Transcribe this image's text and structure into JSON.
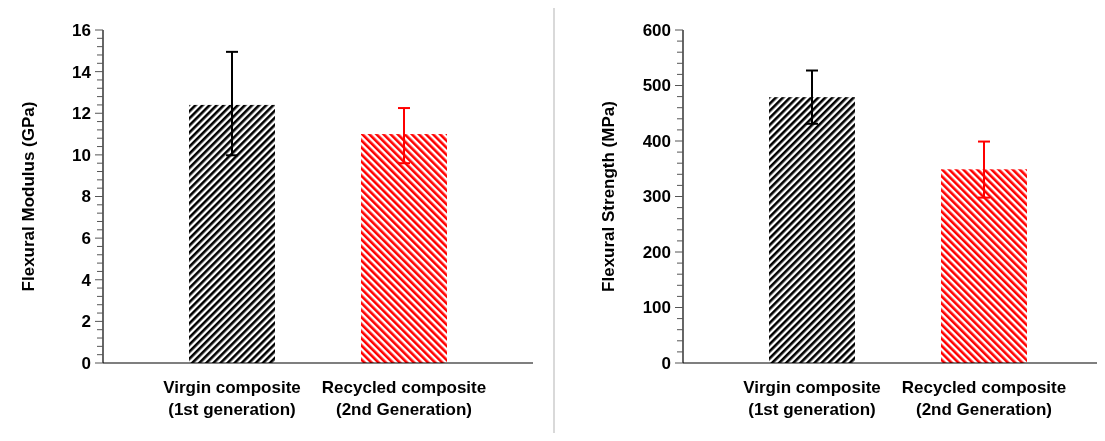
{
  "chart_data": [
    {
      "type": "bar",
      "ylabel": "Flexural Modulus (GPa)",
      "categories": [
        "Virgin composite\n(1st generation)",
        "Recycled composite\n(2nd Generation)"
      ],
      "values": [
        12.4,
        11.0
      ],
      "colors": [
        "#000000",
        "#ff0000"
      ],
      "errors": [
        [
          9.98,
          14.95
        ],
        [
          9.6,
          12.25
        ]
      ],
      "ylim": [
        0,
        16
      ],
      "yticks": [
        0,
        {
          "value": 0.4,
          "label": null
        },
        {
          "value": 0.8,
          "label": null
        },
        {
          "value": 1.2,
          "label": null
        },
        {
          "value": 1.6,
          "label": null
        },
        2,
        {
          "value": 2.4,
          "label": null
        },
        {
          "value": 2.8,
          "label": null
        },
        {
          "value": 3.2,
          "label": null
        },
        {
          "value": 3.6,
          "label": null
        },
        4,
        {
          "value": 4.4,
          "label": null
        },
        {
          "value": 4.8,
          "label": null
        },
        {
          "value": 5.2,
          "label": null
        },
        {
          "value": 5.6,
          "label": null
        },
        6,
        {
          "value": 6.4,
          "label": null
        },
        {
          "value": 6.8,
          "label": null
        },
        {
          "value": 7.2,
          "label": null
        },
        {
          "value": 7.6,
          "label": null
        },
        8,
        {
          "value": 8.4,
          "label": null
        },
        {
          "value": 8.8,
          "label": null
        },
        {
          "value": 9.2,
          "label": null
        },
        {
          "value": 9.6,
          "label": null
        },
        10,
        {
          "value": 10.4,
          "label": null
        },
        {
          "value": 10.8,
          "label": null
        },
        {
          "value": 11.2,
          "label": null
        },
        {
          "value": 11.6,
          "label": null
        },
        12,
        {
          "value": 12.4,
          "label": null
        },
        {
          "value": 12.8,
          "label": null
        },
        {
          "value": 13.2,
          "label": null
        },
        {
          "value": 13.6,
          "label": null
        },
        14,
        {
          "value": 14.4,
          "label": null
        },
        {
          "value": 14.8,
          "label": null
        },
        {
          "value": 15.2,
          "label": null
        },
        {
          "value": 15.6,
          "label": null
        },
        16
      ],
      "grid": false
    },
    {
      "type": "bar",
      "ylabel": "Flexural Strength (MPa)",
      "categories": [
        "Virgin composite\n(1st generation)",
        "Recycled composite\n(2nd Generation)"
      ],
      "values": [
        479,
        349
      ],
      "colors": [
        "#000000",
        "#ff0000"
      ],
      "errors": [
        [
          431,
          527
        ],
        [
          298,
          399
        ]
      ],
      "ylim": [
        0,
        600
      ],
      "yticks": [
        0,
        {
          "value": 20,
          "label": null
        },
        {
          "value": 40,
          "label": null
        },
        {
          "value": 60,
          "label": null
        },
        {
          "value": 80,
          "label": null
        },
        100,
        {
          "value": 120,
          "label": null
        },
        {
          "value": 140,
          "label": null
        },
        {
          "value": 160,
          "label": null
        },
        {
          "value": 180,
          "label": null
        },
        200,
        {
          "value": 220,
          "label": null
        },
        {
          "value": 240,
          "label": null
        },
        {
          "value": 260,
          "label": null
        },
        {
          "value": 280,
          "label": null
        },
        300,
        {
          "value": 320,
          "label": null
        },
        {
          "value": 340,
          "label": null
        },
        {
          "value": 360,
          "label": null
        },
        {
          "value": 380,
          "label": null
        },
        400,
        {
          "value": 420,
          "label": null
        },
        {
          "value": 440,
          "label": null
        },
        {
          "value": 460,
          "label": null
        },
        {
          "value": 480,
          "label": null
        },
        500,
        {
          "value": 520,
          "label": null
        },
        {
          "value": 540,
          "label": null
        },
        {
          "value": 560,
          "label": null
        },
        {
          "value": 580,
          "label": null
        },
        600
      ],
      "grid": false
    }
  ]
}
